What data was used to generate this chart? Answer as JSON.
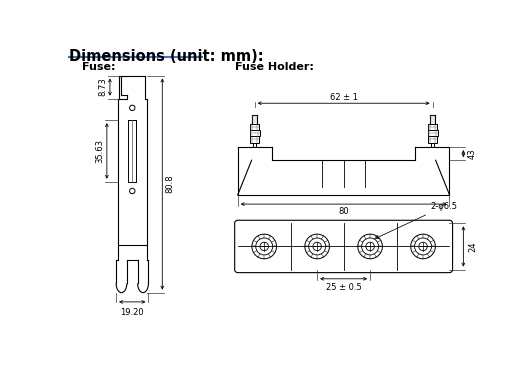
{
  "title": "Dimensions (unit: mm):",
  "title_color": "#000000",
  "title_underline_color": "#4472C4",
  "background_color": "#ffffff",
  "line_color": "#000000",
  "fuse_label": "Fuse:",
  "fuse_holder_label": "Fuse Holder:",
  "dims": {
    "fuse_width": "19.20",
    "fuse_total_height": "80.8",
    "fuse_top_height": "8.73",
    "fuse_mid_height": "35.63",
    "fuse_holder_width_top": "62 ± 1",
    "fuse_holder_width_bottom": "80",
    "fuse_holder_height": "43",
    "bottom_holes": "2-φ6.5",
    "bottom_height": "24",
    "bottom_spacing": "25 ± 0.5"
  }
}
